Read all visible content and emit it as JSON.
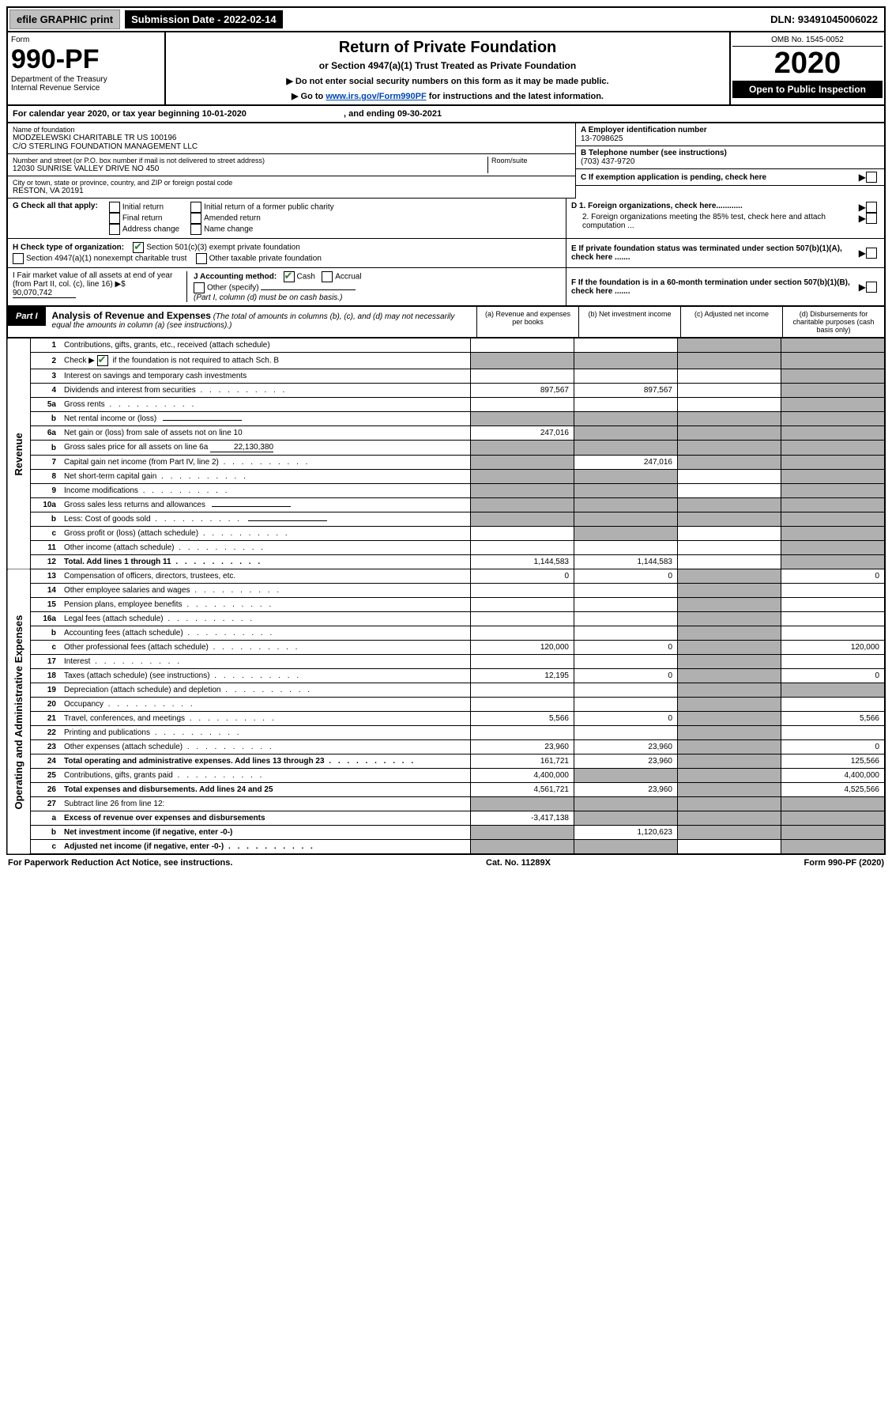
{
  "topbar": {
    "efile": "efile GRAPHIC print",
    "submission": "Submission Date - 2022-02-14",
    "dln": "DLN: 93491045006022"
  },
  "header": {
    "form_word": "Form",
    "form_num": "990-PF",
    "dept": "Department of the Treasury",
    "irs": "Internal Revenue Service",
    "title": "Return of Private Foundation",
    "subtitle": "or Section 4947(a)(1) Trust Treated as Private Foundation",
    "instr1": "▶ Do not enter social security numbers on this form as it may be made public.",
    "instr2_pre": "▶ Go to ",
    "instr2_link": "www.irs.gov/Form990PF",
    "instr2_post": " for instructions and the latest information.",
    "omb": "OMB No. 1545-0052",
    "year": "2020",
    "open": "Open to Public Inspection"
  },
  "calendar": {
    "text_pre": "For calendar year 2020, or tax year beginning ",
    "begin": "10-01-2020",
    "text_mid": " , and ending ",
    "end": "09-30-2021"
  },
  "entity": {
    "name_lbl": "Name of foundation",
    "name1": "MODZELEWSKI CHARITABLE TR US 100196",
    "name2": "C/O STERLING FOUNDATION MANAGEMENT LLC",
    "addr_lbl": "Number and street (or P.O. box number if mail is not delivered to street address)",
    "addr": "12030 SUNRISE VALLEY DRIVE NO 450",
    "room_lbl": "Room/suite",
    "city_lbl": "City or town, state or province, country, and ZIP or foreign postal code",
    "city": "RESTON, VA  20191",
    "ein_lbl": "A Employer identification number",
    "ein": "13-7098625",
    "phone_lbl": "B Telephone number (see instructions)",
    "phone": "(703) 437-9720",
    "c_txt": "C If exemption application is pending, check here",
    "d1": "D 1. Foreign organizations, check here............",
    "d2": "2. Foreign organizations meeting the 85% test, check here and attach computation ...",
    "e_txt": "E  If private foundation status was terminated under section 507(b)(1)(A), check here .......",
    "f_txt": "F  If the foundation is in a 60-month termination under section 507(b)(1)(B), check here .......",
    "g_lbl": "G Check all that apply:",
    "g_initial": "Initial return",
    "g_final": "Final return",
    "g_addr": "Address change",
    "g_initial_former": "Initial return of a former public charity",
    "g_amended": "Amended return",
    "g_name": "Name change",
    "h_lbl": "H Check type of organization:",
    "h_501c3": "Section 501(c)(3) exempt private foundation",
    "h_4947": "Section 4947(a)(1) nonexempt charitable trust",
    "h_other": "Other taxable private foundation",
    "i_lbl": "I Fair market value of all assets at end of year (from Part II, col. (c), line 16) ▶$ ",
    "i_val": "90,070,742",
    "j_lbl": "J Accounting method:",
    "j_cash": "Cash",
    "j_accrual": "Accrual",
    "j_other": "Other (specify)",
    "j_note": "(Part I, column (d) must be on cash basis.)"
  },
  "part1": {
    "label": "Part I",
    "title": "Analysis of Revenue and Expenses",
    "note": " (The total of amounts in columns (b), (c), and (d) may not necessarily equal the amounts in column (a) (see instructions).)",
    "col_a": "(a)  Revenue and expenses per books",
    "col_b": "(b)  Net investment income",
    "col_c": "(c)  Adjusted net income",
    "col_d": "(d)  Disbursements for charitable purposes (cash basis only)"
  },
  "side": {
    "revenue": "Revenue",
    "expenses": "Operating and Administrative Expenses"
  },
  "rows": [
    {
      "n": "1",
      "d": "Contributions, gifts, grants, etc., received (attach schedule)",
      "a": "",
      "b": "",
      "c": "s",
      "dsh": "s"
    },
    {
      "n": "2",
      "d": "",
      "special": "check_schb",
      "a": "s",
      "b": "s",
      "c": "s",
      "dsh": "s"
    },
    {
      "n": "3",
      "d": "Interest on savings and temporary cash investments",
      "a": "",
      "b": "",
      "c": "",
      "dsh": "s"
    },
    {
      "n": "4",
      "d": "Dividends and interest from securities",
      "dots": true,
      "a": "897,567",
      "b": "897,567",
      "c": "",
      "dsh": "s"
    },
    {
      "n": "5a",
      "d": "Gross rents",
      "dots": true,
      "a": "",
      "b": "",
      "c": "",
      "dsh": "s"
    },
    {
      "n": "b",
      "d": "Net rental income or (loss)",
      "inline_box": true,
      "a": "s",
      "b": "s",
      "c": "s",
      "dsh": "s"
    },
    {
      "n": "6a",
      "d": "Net gain or (loss) from sale of assets not on line 10",
      "a": "247,016",
      "b": "s",
      "c": "s",
      "dsh": "s"
    },
    {
      "n": "b",
      "d": "",
      "special": "gross_sales",
      "a": "s",
      "b": "s",
      "c": "s",
      "dsh": "s"
    },
    {
      "n": "7",
      "d": "Capital gain net income (from Part IV, line 2)",
      "dots": true,
      "a": "s",
      "b": "247,016",
      "c": "s",
      "dsh": "s"
    },
    {
      "n": "8",
      "d": "Net short-term capital gain",
      "dots": true,
      "a": "s",
      "b": "s",
      "c": "",
      "dsh": "s"
    },
    {
      "n": "9",
      "d": "Income modifications",
      "dots": true,
      "a": "s",
      "b": "s",
      "c": "",
      "dsh": "s"
    },
    {
      "n": "10a",
      "d": "Gross sales less returns and allowances",
      "inline_box": true,
      "a": "s",
      "b": "s",
      "c": "s",
      "dsh": "s"
    },
    {
      "n": "b",
      "d": "Less: Cost of goods sold",
      "dots": true,
      "inline_box": true,
      "a": "s",
      "b": "s",
      "c": "s",
      "dsh": "s"
    },
    {
      "n": "c",
      "d": "Gross profit or (loss) (attach schedule)",
      "dots": true,
      "a": "",
      "b": "s",
      "c": "",
      "dsh": "s"
    },
    {
      "n": "11",
      "d": "Other income (attach schedule)",
      "dots": true,
      "a": "",
      "b": "",
      "c": "",
      "dsh": "s"
    },
    {
      "n": "12",
      "d": "Total. Add lines 1 through 11",
      "dots": true,
      "bold": true,
      "a": "1,144,583",
      "b": "1,144,583",
      "c": "",
      "dsh": "s"
    },
    {
      "n": "13",
      "d": "Compensation of officers, directors, trustees, etc.",
      "a": "0",
      "b": "0",
      "c": "s",
      "dsh": "0"
    },
    {
      "n": "14",
      "d": "Other employee salaries and wages",
      "dots": true,
      "a": "",
      "b": "",
      "c": "s",
      "dsh": ""
    },
    {
      "n": "15",
      "d": "Pension plans, employee benefits",
      "dots": true,
      "a": "",
      "b": "",
      "c": "s",
      "dsh": ""
    },
    {
      "n": "16a",
      "d": "Legal fees (attach schedule)",
      "dots": true,
      "a": "",
      "b": "",
      "c": "s",
      "dsh": ""
    },
    {
      "n": "b",
      "d": "Accounting fees (attach schedule)",
      "dots": true,
      "a": "",
      "b": "",
      "c": "s",
      "dsh": ""
    },
    {
      "n": "c",
      "d": "Other professional fees (attach schedule)",
      "dots": true,
      "a": "120,000",
      "b": "0",
      "c": "s",
      "dsh": "120,000"
    },
    {
      "n": "17",
      "d": "Interest",
      "dots": true,
      "a": "",
      "b": "",
      "c": "s",
      "dsh": ""
    },
    {
      "n": "18",
      "d": "Taxes (attach schedule) (see instructions)",
      "dots": true,
      "a": "12,195",
      "b": "0",
      "c": "s",
      "dsh": "0"
    },
    {
      "n": "19",
      "d": "Depreciation (attach schedule) and depletion",
      "dots": true,
      "a": "",
      "b": "",
      "c": "s",
      "dsh": "s"
    },
    {
      "n": "20",
      "d": "Occupancy",
      "dots": true,
      "a": "",
      "b": "",
      "c": "s",
      "dsh": ""
    },
    {
      "n": "21",
      "d": "Travel, conferences, and meetings",
      "dots": true,
      "a": "5,566",
      "b": "0",
      "c": "s",
      "dsh": "5,566"
    },
    {
      "n": "22",
      "d": "Printing and publications",
      "dots": true,
      "a": "",
      "b": "",
      "c": "s",
      "dsh": ""
    },
    {
      "n": "23",
      "d": "Other expenses (attach schedule)",
      "dots": true,
      "a": "23,960",
      "b": "23,960",
      "c": "s",
      "dsh": "0"
    },
    {
      "n": "24",
      "d": "Total operating and administrative expenses. Add lines 13 through 23",
      "dots": true,
      "bold": true,
      "a": "161,721",
      "b": "23,960",
      "c": "s",
      "dsh": "125,566"
    },
    {
      "n": "25",
      "d": "Contributions, gifts, grants paid",
      "dots": true,
      "a": "4,400,000",
      "b": "s",
      "c": "s",
      "dsh": "4,400,000"
    },
    {
      "n": "26",
      "d": "Total expenses and disbursements. Add lines 24 and 25",
      "bold": true,
      "a": "4,561,721",
      "b": "23,960",
      "c": "s",
      "dsh": "4,525,566"
    },
    {
      "n": "27",
      "d": "Subtract line 26 from line 12:",
      "a": "s",
      "b": "s",
      "c": "s",
      "dsh": "s"
    },
    {
      "n": "a",
      "d": "Excess of revenue over expenses and disbursements",
      "bold": true,
      "a": "-3,417,138",
      "b": "s",
      "c": "s",
      "dsh": "s"
    },
    {
      "n": "b",
      "d": "Net investment income (if negative, enter -0-)",
      "bold": true,
      "a": "s",
      "b": "1,120,623",
      "c": "s",
      "dsh": "s"
    },
    {
      "n": "c",
      "d": "Adjusted net income (if negative, enter -0-)",
      "bold": true,
      "dots": true,
      "a": "s",
      "b": "s",
      "c": "",
      "dsh": "s"
    }
  ],
  "special": {
    "schb_pre": "Check ▶ ",
    "schb_post": " if the foundation is not required to attach Sch. B",
    "gross_sales_txt": "Gross sales price for all assets on line 6a",
    "gross_sales_val": "22,130,380"
  },
  "footer": {
    "left": "For Paperwork Reduction Act Notice, see instructions.",
    "mid": "Cat. No. 11289X",
    "right": "Form 990-PF (2020)"
  }
}
